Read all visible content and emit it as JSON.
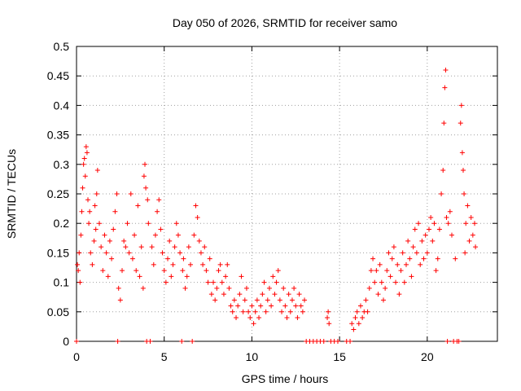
{
  "chart_data": {
    "type": "scatter",
    "title": "Day 050 of 2026, SRMTID for receiver samo",
    "xlabel": "GPS time / hours",
    "ylabel": "SRMTID / TECUs",
    "xlim": [
      0,
      24
    ],
    "ylim": [
      0,
      0.5
    ],
    "grid": true,
    "xticks": [
      {
        "value": 0,
        "label": "0"
      },
      {
        "value": 5,
        "label": "5"
      },
      {
        "value": 10,
        "label": "10"
      },
      {
        "value": 15,
        "label": "15"
      },
      {
        "value": 20,
        "label": "20"
      }
    ],
    "yticks": [
      {
        "value": 0,
        "label": "0"
      },
      {
        "value": 0.05,
        "label": "0.05"
      },
      {
        "value": 0.1,
        "label": "0.1"
      },
      {
        "value": 0.15,
        "label": "0.15"
      },
      {
        "value": 0.2,
        "label": "0.2"
      },
      {
        "value": 0.25,
        "label": "0.25"
      },
      {
        "value": 0.3,
        "label": "0.3"
      },
      {
        "value": 0.35,
        "label": "0.35"
      },
      {
        "value": 0.4,
        "label": "0.4"
      },
      {
        "value": 0.45,
        "label": "0.45"
      },
      {
        "value": 0.5,
        "label": "0.5"
      }
    ],
    "series": [
      {
        "name": "SRMTID",
        "color": "#ff0000",
        "marker": "plus",
        "points": [
          [
            0.0,
            0.0
          ],
          [
            0.05,
            0.13
          ],
          [
            0.1,
            0.12
          ],
          [
            0.15,
            0.15
          ],
          [
            0.2,
            0.1
          ],
          [
            0.25,
            0.18
          ],
          [
            0.3,
            0.22
          ],
          [
            0.35,
            0.26
          ],
          [
            0.4,
            0.3
          ],
          [
            0.45,
            0.31
          ],
          [
            0.5,
            0.28
          ],
          [
            0.55,
            0.33
          ],
          [
            0.6,
            0.32
          ],
          [
            0.65,
            0.24
          ],
          [
            0.7,
            0.2
          ],
          [
            0.75,
            0.22
          ],
          [
            0.8,
            0.15
          ],
          [
            0.9,
            0.13
          ],
          [
            1.0,
            0.17
          ],
          [
            1.05,
            0.23
          ],
          [
            1.1,
            0.19
          ],
          [
            1.15,
            0.25
          ],
          [
            1.2,
            0.29
          ],
          [
            1.3,
            0.2
          ],
          [
            1.4,
            0.16
          ],
          [
            1.5,
            0.12
          ],
          [
            1.6,
            0.18
          ],
          [
            1.7,
            0.15
          ],
          [
            1.8,
            0.11
          ],
          [
            1.9,
            0.17
          ],
          [
            2.0,
            0.14
          ],
          [
            2.1,
            0.19
          ],
          [
            2.2,
            0.22
          ],
          [
            2.3,
            0.25
          ],
          [
            2.35,
            0.0
          ],
          [
            2.4,
            0.09
          ],
          [
            2.5,
            0.07
          ],
          [
            2.6,
            0.12
          ],
          [
            2.7,
            0.17
          ],
          [
            2.8,
            0.16
          ],
          [
            2.9,
            0.2
          ],
          [
            3.0,
            0.15
          ],
          [
            3.1,
            0.25
          ],
          [
            3.2,
            0.14
          ],
          [
            3.3,
            0.18
          ],
          [
            3.4,
            0.12
          ],
          [
            3.5,
            0.23
          ],
          [
            3.6,
            0.11
          ],
          [
            3.7,
            0.16
          ],
          [
            3.8,
            0.09
          ],
          [
            3.85,
            0.28
          ],
          [
            3.9,
            0.3
          ],
          [
            3.95,
            0.26
          ],
          [
            4.0,
            0.0
          ],
          [
            4.05,
            0.24
          ],
          [
            4.1,
            0.2
          ],
          [
            4.2,
            0.0
          ],
          [
            4.3,
            0.16
          ],
          [
            4.4,
            0.13
          ],
          [
            4.5,
            0.18
          ],
          [
            4.6,
            0.22
          ],
          [
            4.7,
            0.24
          ],
          [
            4.8,
            0.19
          ],
          [
            4.9,
            0.15
          ],
          [
            5.0,
            0.12
          ],
          [
            5.1,
            0.1
          ],
          [
            5.2,
            0.14
          ],
          [
            5.3,
            0.17
          ],
          [
            5.4,
            0.11
          ],
          [
            5.5,
            0.13
          ],
          [
            5.6,
            0.16
          ],
          [
            5.7,
            0.2
          ],
          [
            5.8,
            0.18
          ],
          [
            5.9,
            0.15
          ],
          [
            6.0,
            0.0
          ],
          [
            6.05,
            0.12
          ],
          [
            6.1,
            0.14
          ],
          [
            6.2,
            0.09
          ],
          [
            6.3,
            0.11
          ],
          [
            6.4,
            0.16
          ],
          [
            6.5,
            0.13
          ],
          [
            6.6,
            0.0
          ],
          [
            6.7,
            0.18
          ],
          [
            6.8,
            0.23
          ],
          [
            6.9,
            0.21
          ],
          [
            7.0,
            0.17
          ],
          [
            7.1,
            0.15
          ],
          [
            7.2,
            0.13
          ],
          [
            7.3,
            0.16
          ],
          [
            7.4,
            0.12
          ],
          [
            7.5,
            0.1
          ],
          [
            7.6,
            0.14
          ],
          [
            7.7,
            0.08
          ],
          [
            7.8,
            0.1
          ],
          [
            7.9,
            0.07
          ],
          [
            8.0,
            0.09
          ],
          [
            8.1,
            0.12
          ],
          [
            8.2,
            0.13
          ],
          [
            8.3,
            0.1
          ],
          [
            8.4,
            0.08
          ],
          [
            8.5,
            0.11
          ],
          [
            8.6,
            0.13
          ],
          [
            8.7,
            0.09
          ],
          [
            8.8,
            0.06
          ],
          [
            8.9,
            0.05
          ],
          [
            9.0,
            0.07
          ],
          [
            9.1,
            0.04
          ],
          [
            9.2,
            0.06
          ],
          [
            9.3,
            0.08
          ],
          [
            9.4,
            0.11
          ],
          [
            9.5,
            0.05
          ],
          [
            9.6,
            0.07
          ],
          [
            9.7,
            0.09
          ],
          [
            9.8,
            0.05
          ],
          [
            9.9,
            0.04
          ],
          [
            10.0,
            0.06
          ],
          [
            10.1,
            0.03
          ],
          [
            10.2,
            0.05
          ],
          [
            10.3,
            0.07
          ],
          [
            10.4,
            0.04
          ],
          [
            10.5,
            0.06
          ],
          [
            10.6,
            0.08
          ],
          [
            10.7,
            0.1
          ],
          [
            10.8,
            0.05
          ],
          [
            10.9,
            0.07
          ],
          [
            11.0,
            0.09
          ],
          [
            11.1,
            0.06
          ],
          [
            11.2,
            0.11
          ],
          [
            11.3,
            0.08
          ],
          [
            11.4,
            0.1
          ],
          [
            11.5,
            0.12
          ],
          [
            11.6,
            0.07
          ],
          [
            11.7,
            0.05
          ],
          [
            11.8,
            0.09
          ],
          [
            11.9,
            0.06
          ],
          [
            12.0,
            0.04
          ],
          [
            12.1,
            0.08
          ],
          [
            12.2,
            0.05
          ],
          [
            12.3,
            0.07
          ],
          [
            12.4,
            0.09
          ],
          [
            12.5,
            0.06
          ],
          [
            12.6,
            0.04
          ],
          [
            12.7,
            0.08
          ],
          [
            12.8,
            0.06
          ],
          [
            12.9,
            0.05
          ],
          [
            13.0,
            0.07
          ],
          [
            13.1,
            0.0
          ],
          [
            13.3,
            0.0
          ],
          [
            13.5,
            0.0
          ],
          [
            13.7,
            0.0
          ],
          [
            13.9,
            0.0
          ],
          [
            14.1,
            0.0
          ],
          [
            14.3,
            0.04
          ],
          [
            14.35,
            0.05
          ],
          [
            14.4,
            0.03
          ],
          [
            14.5,
            0.0
          ],
          [
            14.7,
            0.0
          ],
          [
            14.9,
            0.0
          ],
          [
            15.4,
            0.0
          ],
          [
            15.6,
            0.0
          ],
          [
            15.7,
            0.03
          ],
          [
            15.8,
            0.02
          ],
          [
            15.9,
            0.04
          ],
          [
            16.0,
            0.05
          ],
          [
            16.1,
            0.03
          ],
          [
            16.2,
            0.06
          ],
          [
            16.3,
            0.04
          ],
          [
            16.4,
            0.05
          ],
          [
            16.5,
            0.07
          ],
          [
            16.6,
            0.05
          ],
          [
            16.7,
            0.09
          ],
          [
            16.8,
            0.12
          ],
          [
            16.9,
            0.14
          ],
          [
            17.0,
            0.1
          ],
          [
            17.1,
            0.12
          ],
          [
            17.2,
            0.08
          ],
          [
            17.3,
            0.13
          ],
          [
            17.4,
            0.1
          ],
          [
            17.5,
            0.07
          ],
          [
            17.6,
            0.09
          ],
          [
            17.7,
            0.12
          ],
          [
            17.8,
            0.15
          ],
          [
            17.9,
            0.11
          ],
          [
            18.0,
            0.14
          ],
          [
            18.1,
            0.16
          ],
          [
            18.2,
            0.1
          ],
          [
            18.3,
            0.13
          ],
          [
            18.4,
            0.08
          ],
          [
            18.5,
            0.12
          ],
          [
            18.6,
            0.15
          ],
          [
            18.7,
            0.1
          ],
          [
            18.8,
            0.13
          ],
          [
            18.9,
            0.17
          ],
          [
            19.0,
            0.14
          ],
          [
            19.1,
            0.11
          ],
          [
            19.2,
            0.16
          ],
          [
            19.3,
            0.19
          ],
          [
            19.4,
            0.15
          ],
          [
            19.5,
            0.2
          ],
          [
            19.6,
            0.13
          ],
          [
            19.7,
            0.17
          ],
          [
            19.8,
            0.14
          ],
          [
            19.9,
            0.18
          ],
          [
            20.0,
            0.15
          ],
          [
            20.1,
            0.19
          ],
          [
            20.2,
            0.21
          ],
          [
            20.3,
            0.17
          ],
          [
            20.4,
            0.2
          ],
          [
            20.5,
            0.12
          ],
          [
            20.6,
            0.14
          ],
          [
            20.7,
            0.19
          ],
          [
            20.8,
            0.25
          ],
          [
            20.9,
            0.29
          ],
          [
            20.95,
            0.37
          ],
          [
            21.0,
            0.43
          ],
          [
            21.05,
            0.46
          ],
          [
            21.1,
            0.21
          ],
          [
            21.15,
            0.0
          ],
          [
            21.2,
            0.2
          ],
          [
            21.3,
            0.22
          ],
          [
            21.4,
            0.18
          ],
          [
            21.5,
            0.0
          ],
          [
            21.6,
            0.14
          ],
          [
            21.7,
            0.0
          ],
          [
            21.8,
            0.0
          ],
          [
            21.9,
            0.37
          ],
          [
            21.95,
            0.4
          ],
          [
            22.0,
            0.32
          ],
          [
            22.05,
            0.29
          ],
          [
            22.1,
            0.25
          ],
          [
            22.15,
            0.15
          ],
          [
            22.2,
            0.2
          ],
          [
            22.3,
            0.23
          ],
          [
            22.4,
            0.17
          ],
          [
            22.5,
            0.21
          ],
          [
            22.6,
            0.18
          ],
          [
            22.7,
            0.2
          ],
          [
            22.75,
            0.16
          ]
        ]
      }
    ]
  }
}
